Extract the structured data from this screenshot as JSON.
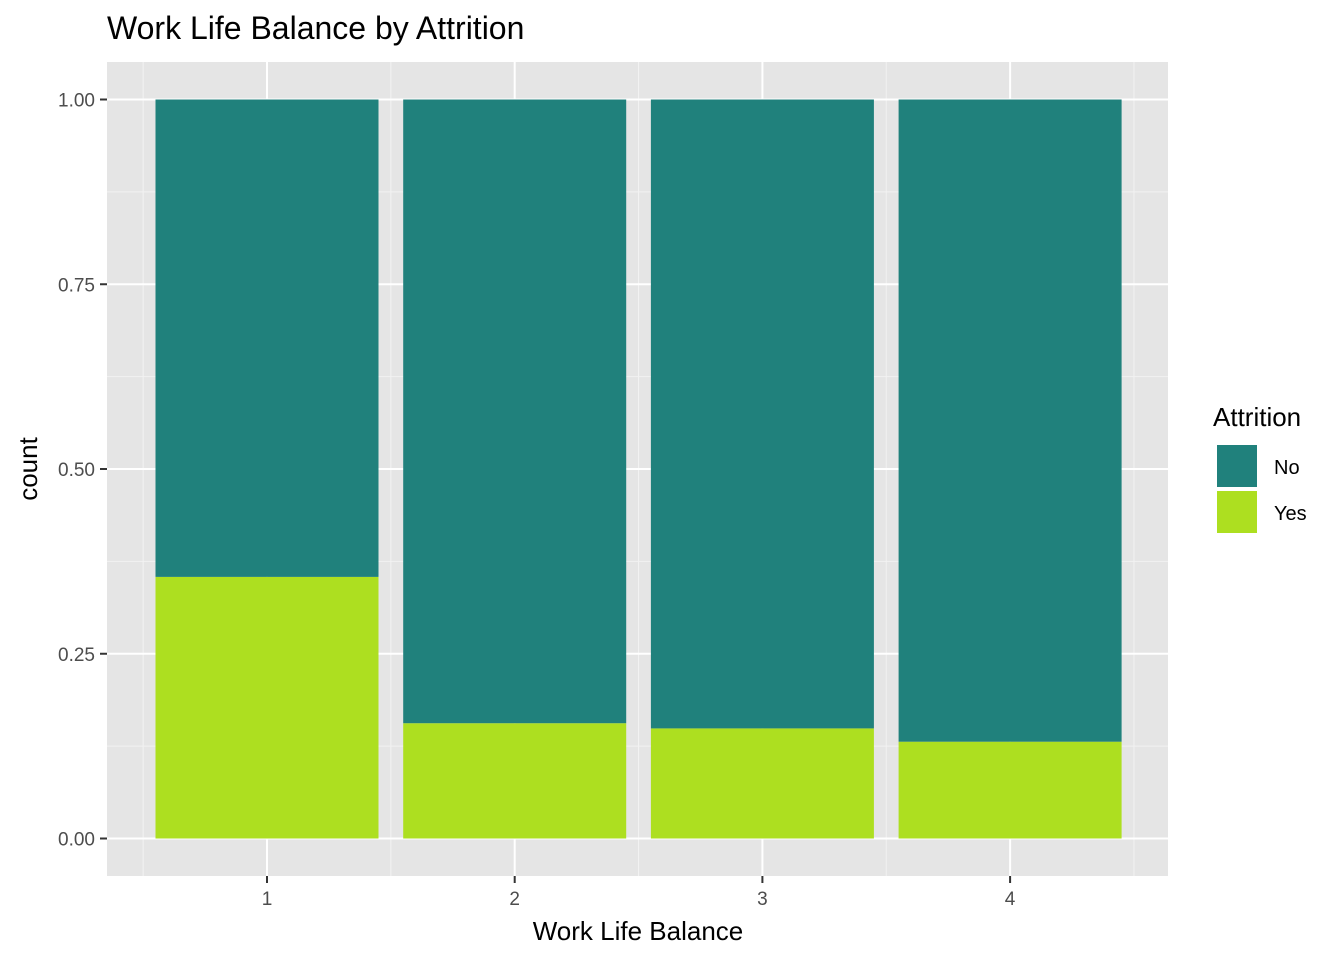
{
  "chart_data": {
    "type": "bar",
    "stacked": true,
    "title": "Work Life Balance by Attrition",
    "xlabel": "Work Life Balance",
    "ylabel": "count",
    "categories": [
      "1",
      "2",
      "3",
      "4"
    ],
    "ylim": [
      0,
      1
    ],
    "yticks": [
      "0.00",
      "0.25",
      "0.50",
      "0.75",
      "1.00"
    ],
    "grid": true,
    "legend": {
      "title": "Attrition",
      "position": "right"
    },
    "series": [
      {
        "name": "Yes",
        "color": "#addf20",
        "values": [
          0.354,
          0.156,
          0.149,
          0.131
        ]
      },
      {
        "name": "No",
        "color": "#20817c",
        "values": [
          0.646,
          0.844,
          0.851,
          0.869
        ]
      }
    ],
    "legend_order": [
      "No",
      "Yes"
    ],
    "panel_background": "#e5e5e5"
  }
}
